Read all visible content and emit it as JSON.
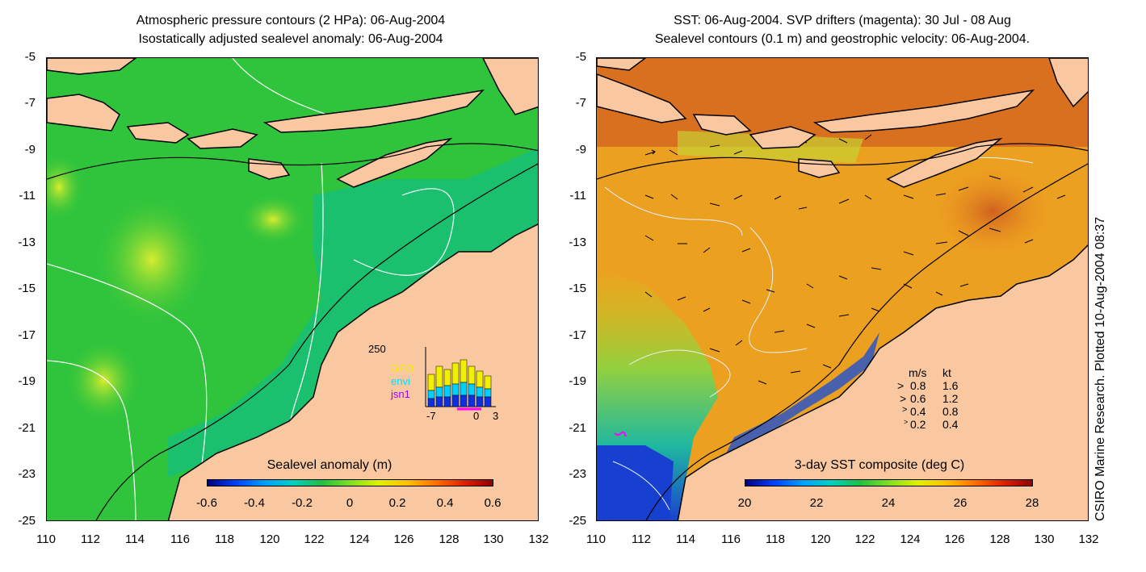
{
  "left_panel": {
    "title_line1": "Atmospheric pressure contours (2 HPa): 06-Aug-2004",
    "title_line2": "Isostatically adjusted sealevel anomaly: 06-Aug-2004",
    "colorbar": {
      "label": "Sealevel anomaly (m)",
      "ticks": [
        "-0.6",
        "-0.4",
        "-0.2",
        "0",
        "0.2",
        "0.4",
        "0.6"
      ]
    },
    "inset": {
      "ymax_label": "250",
      "legend": [
        {
          "name": "GFO",
          "color": "#f0f000"
        },
        {
          "name": "envi",
          "color": "#00e0ff"
        },
        {
          "name": "jsn1",
          "color": "#a000ff"
        }
      ],
      "x_ticks": [
        "-7",
        "0",
        "3"
      ]
    }
  },
  "right_panel": {
    "title_line1": "SST: 06-Aug-2004. SVP drifters (magenta): 30 Jul - 08 Aug",
    "title_line2": "Sealevel contours (0.1 m) and geostrophic velocity: 06-Aug-2004.",
    "colorbar": {
      "label": "3-day SST composite (deg C)",
      "ticks": [
        "20",
        "22",
        "24",
        "26",
        "28"
      ]
    },
    "velocity_legend": {
      "header_ms": "m/s",
      "header_kt": "kt",
      "rows": [
        {
          "ms": "0.8",
          "kt": "1.6"
        },
        {
          "ms": "0.6",
          "kt": "1.2"
        },
        {
          "ms": "0.4",
          "kt": "0.8"
        },
        {
          "ms": "0.2",
          "kt": "0.4"
        }
      ]
    }
  },
  "axes": {
    "y_ticks": [
      "-5",
      "-7",
      "-9",
      "-11",
      "-13",
      "-15",
      "-17",
      "-19",
      "-21",
      "-23",
      "-25"
    ],
    "x_ticks": [
      "110",
      "112",
      "114",
      "116",
      "118",
      "120",
      "122",
      "124",
      "126",
      "128",
      "130",
      "132"
    ]
  },
  "credit": "CSIRO Marine Research. Plotted 10-Aug-2004 08:37",
  "colors": {
    "land": "#f9c8a0",
    "sea_left": "#2bc43a",
    "shelf_left": "#16c080",
    "sea_right": "#f0a020",
    "cold_right": "#2040d0"
  }
}
